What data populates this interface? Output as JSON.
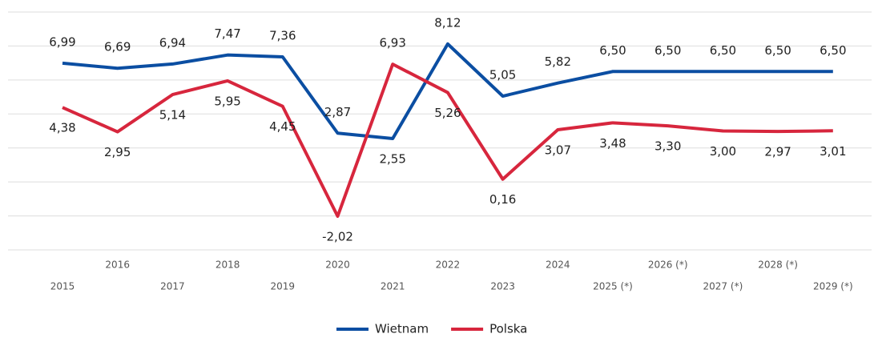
{
  "chart_data": {
    "type": "line",
    "categories": [
      "2015",
      "2016",
      "2017",
      "2018",
      "2019",
      "2020",
      "2021",
      "2022",
      "2023",
      "2024",
      "2025 (*)",
      "2026 (*)",
      "2027 (*)",
      "2028 (*)",
      "2029 (*)"
    ],
    "series": [
      {
        "name": "Wietnam",
        "color": "#0b4ea2",
        "values": [
          6.99,
          6.69,
          6.94,
          7.47,
          7.36,
          2.87,
          2.55,
          8.12,
          5.05,
          5.82,
          6.5,
          6.5,
          6.5,
          6.5,
          6.5
        ],
        "value_labels": [
          "6,99",
          "6,69",
          "6,94",
          "7,47",
          "7,36",
          "2,87",
          "2,55",
          "8,12",
          "5,05",
          "5,82",
          "6,50",
          "6,50",
          "6,50",
          "6,50",
          "6,50"
        ]
      },
      {
        "name": "Polska",
        "color": "#d7263d",
        "values": [
          4.38,
          2.95,
          5.14,
          5.95,
          4.45,
          -2.02,
          6.93,
          5.26,
          0.16,
          3.07,
          3.48,
          3.3,
          3.0,
          2.97,
          3.01
        ],
        "value_labels": [
          "4,38",
          "2,95",
          "5,14",
          "5,95",
          "4,45",
          "-2,02",
          "6,93",
          "5,26",
          "0,16",
          "3,07",
          "3,48",
          "3,30",
          "3,00",
          "2,97",
          "3,01"
        ]
      }
    ],
    "ylim": [
      -4,
      10
    ],
    "yticks": [
      -4,
      -2,
      0,
      2,
      4,
      6,
      8,
      10
    ],
    "grid": true
  }
}
